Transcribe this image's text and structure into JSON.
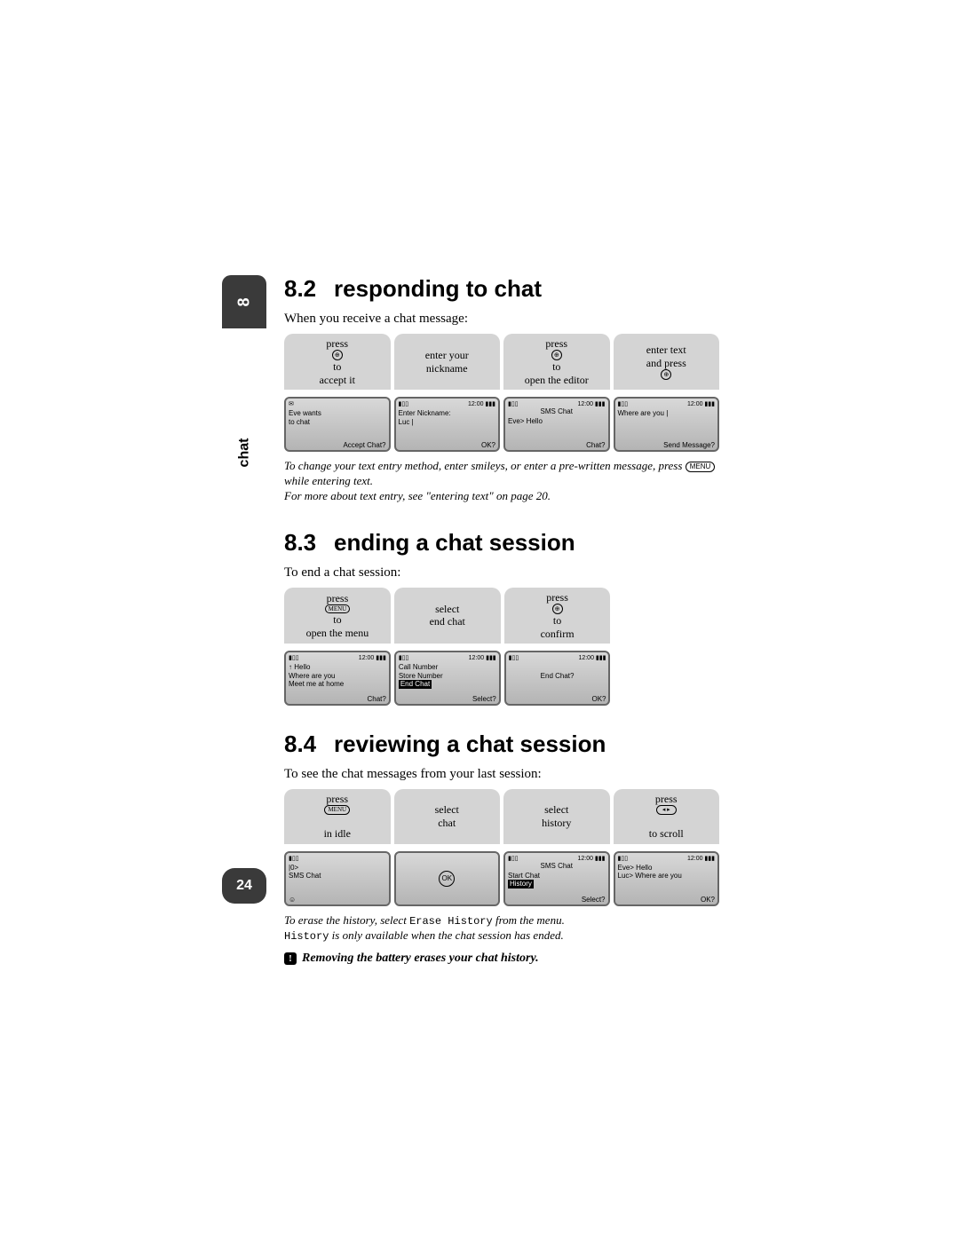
{
  "chapter_num": "8",
  "side_label": "chat",
  "page_number": "24",
  "sections": {
    "s82": {
      "num": "8.2",
      "title": "responding to chat",
      "intro": "When you receive a chat message:",
      "captions": [
        "press ⊕ to\naccept it",
        "enter your\nnickname",
        "press ⊕ to\nopen the editor",
        "enter text\nand press ⊕"
      ],
      "screens": [
        {
          "status_left": "✉",
          "status_right": "",
          "lines": [
            "Eve wants",
            "to chat"
          ],
          "footer": "Accept Chat?"
        },
        {
          "status_left": "▮▯▯",
          "status_right": "12:00 ▮▮▮",
          "lines": [
            "Enter Nickname:",
            "Luc |"
          ],
          "footer": "OK?"
        },
        {
          "status_left": "▮▯▯",
          "status_right": "12:00 ▮▮▮",
          "title": "SMS Chat",
          "lines": [
            "Eve> Hello"
          ],
          "footer": "Chat?"
        },
        {
          "status_left": "▮▯▯",
          "status_right": "12:00 ▮▮▮",
          "lines": [
            "Where are you |"
          ],
          "footer": "Send Message?"
        }
      ],
      "note1": "To change your text entry method, enter smileys, or enter a pre-written message, press",
      "note1_btn": "MENU",
      "note1_after": "while entering text.",
      "note2": "For more about text entry, see \"entering text\" on page 20."
    },
    "s83": {
      "num": "8.3",
      "title": "ending a chat session",
      "intro": "To end a chat session:",
      "captions": [
        "press MENU to\nopen the menu",
        "select\nend chat",
        "press ⊕ to\nconfirm"
      ],
      "screens": [
        {
          "status_left": "▮▯▯",
          "status_right": "12:00 ▮▮▮",
          "lines": [
            "↑ Hello",
            " Where are you",
            " Meet me at home"
          ],
          "footer": "Chat?"
        },
        {
          "status_left": "▮▯▯",
          "status_right": "12:00 ▮▮▮",
          "lines": [
            "Call Number",
            "Store Number"
          ],
          "hilite": "End Chat",
          "footer": "Select?"
        },
        {
          "status_left": "▮▯▯",
          "status_right": "12:00 ▮▮▮",
          "center": "End Chat?",
          "footer": "OK?"
        }
      ]
    },
    "s84": {
      "num": "8.4",
      "title": "reviewing a chat session",
      "intro": "To see the chat messages from your last session:",
      "captions": [
        "press MENU\nin idle",
        "select\nchat",
        "select\nhistory",
        "press ◂▸\nto scroll"
      ],
      "screens": [
        {
          "status_left": "▮▯▯",
          "status_right": "",
          "lines": [
            "|0>",
            " SMS Chat"
          ],
          "footer": "☺"
        },
        {
          "blank": true,
          "center_icon": "OK"
        },
        {
          "status_left": "▮▯▯",
          "status_right": "12:00 ▮▮▮",
          "title": "SMS Chat",
          "lines": [
            "Start Chat"
          ],
          "hilite": "History",
          "footer": "Select?"
        },
        {
          "status_left": "▮▯▯",
          "status_right": "12:00 ▮▮▮",
          "lines": [
            "Eve> Hello",
            "Luc> Where are you"
          ],
          "footer": "OK?"
        }
      ],
      "note1_pre": "To erase the history, select",
      "note1_mono": "Erase History",
      "note1_post": "from the menu.",
      "note2_mono": "History",
      "note2_post": "is only available when the chat session has ended.",
      "warning": "Removing the battery erases your chat history."
    }
  }
}
